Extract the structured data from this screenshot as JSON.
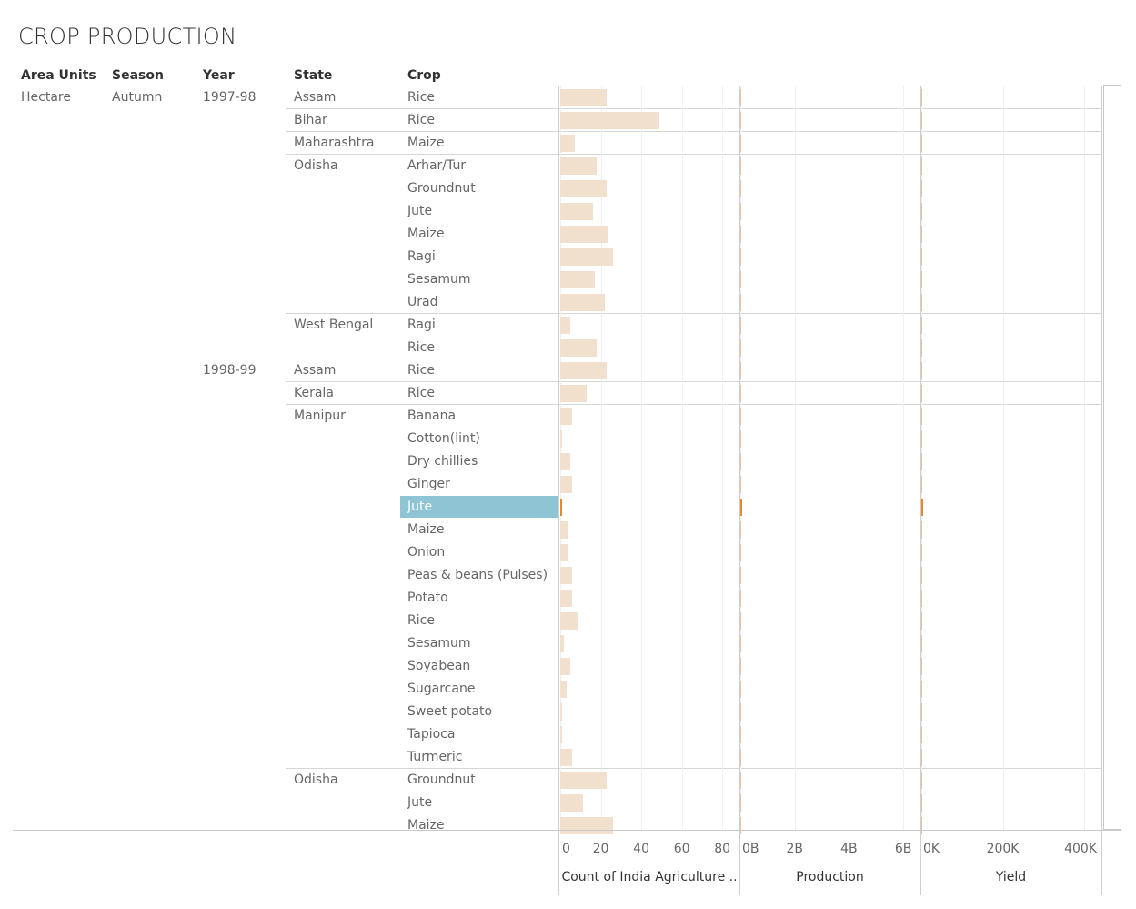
{
  "title": "CROP PRODUCTION",
  "headers": {
    "area_units": "Area Units",
    "season": "Season",
    "year": "Year",
    "state": "State",
    "crop": "Crop"
  },
  "area_units": "Hectare",
  "season": "Autumn",
  "years": [
    {
      "label": "1997-98",
      "row": 0
    },
    {
      "label": "1998-99",
      "row": 12
    }
  ],
  "states": [
    {
      "label": "Assam",
      "row": 0
    },
    {
      "label": "Bihar",
      "row": 1
    },
    {
      "label": "Maharashtra",
      "row": 2
    },
    {
      "label": "Odisha",
      "row": 3
    },
    {
      "label": "West Bengal",
      "row": 10
    },
    {
      "label": "Assam",
      "row": 12
    },
    {
      "label": "Kerala",
      "row": 13
    },
    {
      "label": "Manipur",
      "row": 14
    },
    {
      "label": "Odisha",
      "row": 30
    }
  ],
  "selected_row": 18,
  "chart_data": {
    "type": "bar",
    "categories": [
      "Rice",
      "Rice",
      "Maize",
      "Arhar/Tur",
      "Groundnut",
      "Jute",
      "Maize",
      "Ragi",
      "Sesamum",
      "Urad",
      "Ragi",
      "Rice",
      "Rice",
      "Rice",
      "Banana",
      "Cotton(lint)",
      "Dry chillies",
      "Ginger",
      "Jute",
      "Maize",
      "Onion",
      "Peas & beans (Pulses)",
      "Potato",
      "Rice",
      "Sesamum",
      "Soyabean",
      "Sugarcane",
      "Sweet potato",
      "Tapioca",
      "Turmeric",
      "Groundnut",
      "Jute",
      "Maize"
    ],
    "series": [
      {
        "name": "Count of India Agriculture ..",
        "values": [
          23,
          49,
          7,
          18,
          23,
          16,
          24,
          26,
          17,
          22,
          5,
          18,
          23,
          13,
          6,
          1,
          5,
          6,
          1,
          4,
          4,
          6,
          6,
          9,
          2,
          5,
          3,
          1,
          1,
          6,
          23,
          11,
          26
        ]
      },
      {
        "name": "Production",
        "values": [
          0.002,
          0.003,
          0.002,
          0.001,
          0.002,
          0.001,
          0.001,
          0.002,
          0.001,
          0.001,
          0.001,
          0.002,
          0.002,
          0.001,
          0.001,
          0.001,
          0.001,
          0.001,
          0.001,
          0.001,
          0.001,
          0.001,
          0.001,
          0.001,
          0.001,
          0.001,
          0.001,
          0.001,
          0.001,
          0.001,
          0.001,
          0.001,
          0.001
        ]
      },
      {
        "name": "Yield",
        "values": [
          500,
          500,
          1500,
          500,
          500,
          500,
          500,
          500,
          500,
          500,
          500,
          500,
          500,
          500,
          500,
          500,
          500,
          500,
          500,
          500,
          500,
          500,
          500,
          500,
          500,
          500,
          500,
          500,
          500,
          500,
          500,
          500,
          500
        ]
      }
    ],
    "panels": [
      {
        "title": "Count of India Agriculture ..",
        "ticks": [
          "0",
          "20",
          "40",
          "60",
          "80"
        ],
        "tick_values": [
          0,
          20,
          40,
          60,
          80
        ],
        "xlim": [
          0,
          88
        ]
      },
      {
        "title": "Production",
        "ticks": [
          "0B",
          "2B",
          "4B",
          "6B"
        ],
        "tick_values": [
          0,
          2,
          4,
          6
        ],
        "xlim": [
          0,
          6.6
        ],
        "unit": "B"
      },
      {
        "title": "Yield",
        "ticks": [
          "0K",
          "200K",
          "400K"
        ],
        "tick_values": [
          0,
          200000,
          400000
        ],
        "xlim": [
          0,
          440000
        ]
      }
    ],
    "xlabel": "",
    "ylabel": "",
    "grid": true
  }
}
